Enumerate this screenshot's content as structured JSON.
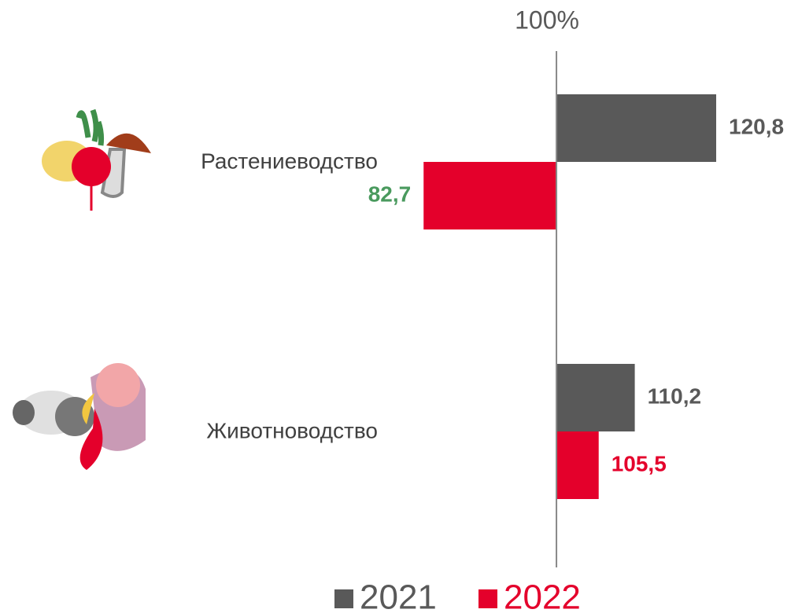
{
  "chart_data": {
    "type": "bar",
    "orientation": "horizontal",
    "categories": [
      "Растениеводство",
      "Животноводство"
    ],
    "series": [
      {
        "name": "2021",
        "color": "#595959",
        "values": [
          120.8,
          110.2
        ],
        "value_labels": [
          "120,8",
          "110,2"
        ],
        "value_label_colors": [
          "#595959",
          "#595959"
        ]
      },
      {
        "name": "2022",
        "color": "#e4002b",
        "values": [
          82.7,
          105.5
        ],
        "value_labels": [
          "82,7",
          "105,5"
        ],
        "value_label_colors": [
          "#4a9a5e",
          "#e4002b"
        ]
      }
    ],
    "xlim": [
      30,
      125
    ],
    "xticks": [
      {
        "value": 100,
        "label": "100%"
      }
    ]
  }
}
